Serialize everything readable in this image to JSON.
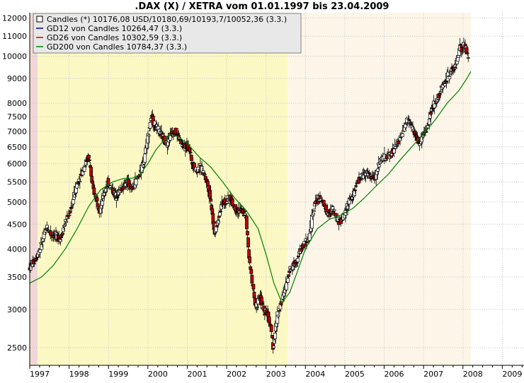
{
  "chart_data": {
    "type": "line",
    "title": ".DAX (X) / XETRA vom 01.01.1997 bis 23.04.2009",
    "y_scale": "log",
    "ylim": [
      2300,
      12300
    ],
    "xlim": [
      1997.0,
      2009.55
    ],
    "y_ticks": [
      2500,
      3000,
      3500,
      4000,
      4500,
      5000,
      5500,
      6000,
      6500,
      7000,
      7500,
      8000,
      9000,
      10000,
      11000,
      12000
    ],
    "x_ticks": [
      1997,
      1998,
      1999,
      2000,
      2001,
      2002,
      2003,
      2004,
      2005,
      2006,
      2007,
      2008,
      2009
    ],
    "x_tick_labels": [
      "1997",
      "1998",
      "1999",
      "2000",
      "2001",
      "2002",
      "2003",
      "2004",
      "2005",
      "2006",
      "2007",
      "2008",
      "2009"
    ],
    "grid": true,
    "legend_position": "top-left",
    "colors": {
      "gd12": "#000080",
      "gd26": "#d00000",
      "gd200": "#008000",
      "candle_body": "#000000",
      "candle_down": "#c00000",
      "shade_pink": "#f2d6d6",
      "shade_yellow": "#fbf8c4",
      "shade_cream": "#fdf6e8"
    },
    "legend": [
      {
        "label": "Candles (*) 10176,08 USD/10180,69/10193,7/10052,36 (3.3.)",
        "marker": "box"
      },
      {
        "label": "GD12 von Candles 10264,47 (3.3.)",
        "marker": "line",
        "color": "#000080"
      },
      {
        "label": "GD26 von Candles 10302,59 (3.3.)",
        "marker": "line",
        "color": "#d00000"
      },
      {
        "label": "GD200 von Candles 10784,37 (3.3.)",
        "marker": "line",
        "color": "#008000"
      }
    ],
    "shaded_periods": [
      {
        "from": 1997.0,
        "to": 1997.2,
        "color": "#f2d6d6"
      },
      {
        "from": 1997.2,
        "to": 2003.55,
        "color": "#fbf8c4"
      },
      {
        "from": 2003.55,
        "to": 2008.2,
        "color": "#fdf6e8"
      }
    ],
    "series": [
      {
        "name": "Candles",
        "x": [
          1997.0,
          1997.15,
          1997.3,
          1997.45,
          1997.55,
          1997.7,
          1997.8,
          1997.9,
          1998.05,
          1998.2,
          1998.35,
          1998.5,
          1998.55,
          1998.6,
          1998.7,
          1998.8,
          1998.9,
          1999.0,
          1999.2,
          1999.35,
          1999.5,
          1999.6,
          1999.7,
          1999.8,
          1999.9,
          2000.0,
          2000.1,
          2000.2,
          2000.35,
          2000.5,
          2000.6,
          2000.7,
          2000.8,
          2000.9,
          2001.05,
          2001.15,
          2001.25,
          2001.35,
          2001.45,
          2001.55,
          2001.65,
          2001.7,
          2001.8,
          2001.9,
          2002.0,
          2002.1,
          2002.2,
          2002.3,
          2002.4,
          2002.5,
          2002.55,
          2002.6,
          2002.7,
          2002.75,
          2002.85,
          2002.95,
          2003.05,
          2003.15,
          2003.2,
          2003.3,
          2003.4,
          2003.5,
          2003.6,
          2003.7,
          2003.8,
          2003.9,
          2004.0,
          2004.1,
          2004.2,
          2004.3,
          2004.4,
          2004.5,
          2004.6,
          2004.7,
          2004.8,
          2004.9,
          2005.0,
          2005.1,
          2005.2,
          2005.3,
          2005.4,
          2005.5,
          2005.6,
          2005.7,
          2005.8,
          2005.9,
          2006.0,
          2006.1,
          2006.2,
          2006.3,
          2006.4,
          2006.5,
          2006.6,
          2006.7,
          2006.8,
          2006.9,
          2007.0,
          2007.1,
          2007.2,
          2007.3,
          2007.4,
          2007.5,
          2007.6,
          2007.7,
          2007.8,
          2007.85,
          2007.9,
          2007.95,
          2008.0,
          2008.05,
          2008.1,
          2008.15
        ],
        "values": [
          3650,
          3800,
          4050,
          4450,
          4300,
          4250,
          4200,
          4500,
          4800,
          5400,
          5800,
          6200,
          6000,
          5400,
          5100,
          4800,
          5200,
          5500,
          5150,
          5350,
          5500,
          5300,
          5500,
          5700,
          6000,
          6700,
          7500,
          7200,
          6900,
          6600,
          6900,
          7000,
          6800,
          6500,
          6500,
          6000,
          5800,
          5900,
          5700,
          5400,
          4800,
          4300,
          4600,
          5000,
          5000,
          5100,
          4900,
          4800,
          4800,
          4700,
          4200,
          3700,
          3300,
          3000,
          3200,
          3000,
          2950,
          2700,
          2500,
          2900,
          3100,
          3300,
          3600,
          3700,
          3800,
          4000,
          4100,
          4200,
          4700,
          5100,
          5050,
          4900,
          4700,
          4850,
          4600,
          4550,
          4700,
          5000,
          5100,
          5400,
          5600,
          5700,
          5750,
          5600,
          5650,
          6100,
          6150,
          6200,
          6300,
          6500,
          6700,
          7000,
          7400,
          7200,
          6900,
          6600,
          6800,
          7100,
          7700,
          8000,
          8300,
          8700,
          9000,
          9300,
          9500,
          9700,
          10000,
          10500,
          10200,
          10600,
          10300,
          10000
        ]
      },
      {
        "name": "GD200",
        "x": [
          1997.0,
          1997.3,
          1997.6,
          1997.9,
          1998.2,
          1998.5,
          1998.8,
          1999.1,
          1999.4,
          1999.6,
          1999.8,
          2000.0,
          2000.2,
          2000.4,
          2000.6,
          2000.8,
          2001.0,
          2001.3,
          2001.6,
          2001.9,
          2002.2,
          2002.5,
          2002.8,
          2003.0,
          2003.2,
          2003.4,
          2003.6,
          2003.8,
          2004.0,
          2004.3,
          2004.6,
          2004.9,
          2005.2,
          2005.5,
          2005.8,
          2006.1,
          2006.4,
          2006.7,
          2007.0,
          2007.3,
          2007.6,
          2007.9,
          2008.1,
          2008.2
        ],
        "values": [
          3400,
          3500,
          3700,
          4000,
          4400,
          4900,
          5300,
          5500,
          5600,
          5600,
          5700,
          6000,
          6400,
          6700,
          6900,
          6800,
          6600,
          6200,
          5900,
          5500,
          5100,
          4800,
          4400,
          3900,
          3400,
          3100,
          3250,
          3600,
          4000,
          4400,
          4600,
          4700,
          4850,
          5100,
          5400,
          5700,
          6100,
          6500,
          6900,
          7400,
          8000,
          8500,
          9000,
          9300
        ]
      }
    ]
  }
}
